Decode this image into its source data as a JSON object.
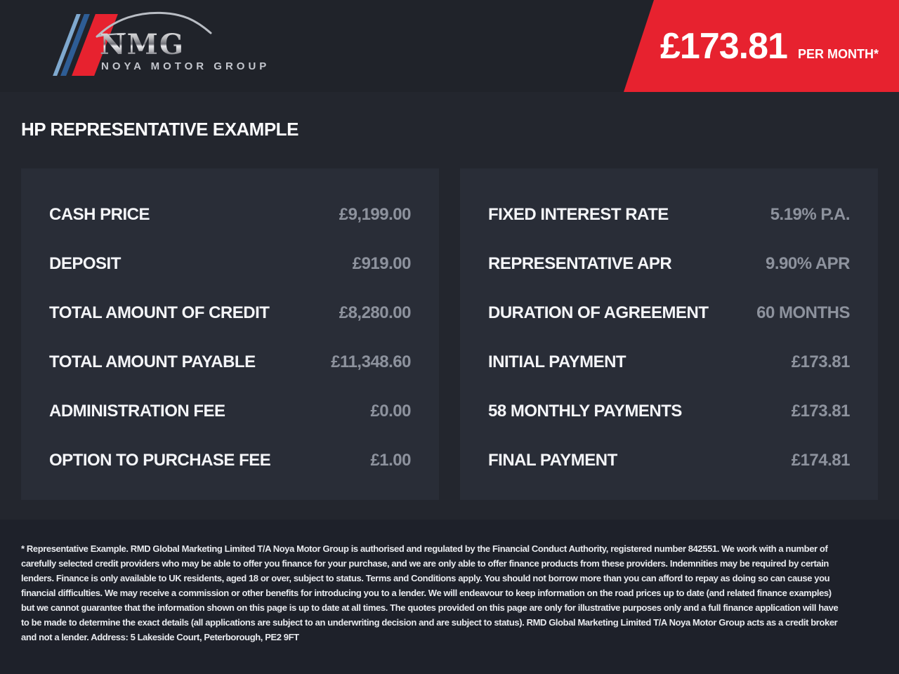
{
  "colors": {
    "accent_red": "#e7222f",
    "header_bg": "#20232a",
    "main_bg": "#23262e",
    "panel_bg": "#292d37",
    "footer_bg": "#1e212a",
    "label_text": "#f4f5f8",
    "value_text": "#8d929d",
    "logo_silver": "#c3c6cd",
    "logo_light_blue": "#7fa9cf",
    "logo_dark_blue": "#2e5d95"
  },
  "brand": {
    "initials": "NMG",
    "name": "NOYA MOTOR GROUP",
    "car_icon": "car-silhouette-icon"
  },
  "banner": {
    "price": "£173.81",
    "period": "PER MONTH*"
  },
  "page": {
    "title": "HP REPRESENTATIVE EXAMPLE"
  },
  "panels": {
    "left": {
      "rows": [
        {
          "label": "CASH PRICE",
          "value": "£9,199.00"
        },
        {
          "label": "DEPOSIT",
          "value": "£919.00"
        },
        {
          "label": "TOTAL AMOUNT OF CREDIT",
          "value": "£8,280.00"
        },
        {
          "label": "TOTAL AMOUNT PAYABLE",
          "value": "£11,348.60"
        },
        {
          "label": "ADMINISTRATION FEE",
          "value": "£0.00"
        },
        {
          "label": "OPTION TO PURCHASE FEE",
          "value": "£1.00"
        }
      ]
    },
    "right": {
      "rows": [
        {
          "label": "FIXED INTEREST RATE",
          "value": "5.19% P.A."
        },
        {
          "label": "REPRESENTATIVE APR",
          "value": "9.90% APR"
        },
        {
          "label": "DURATION OF AGREEMENT",
          "value": "60 MONTHS"
        },
        {
          "label": "INITIAL PAYMENT",
          "value": "£173.81"
        },
        {
          "label": "58 MONTHLY PAYMENTS",
          "value": "£173.81"
        },
        {
          "label": "FINAL PAYMENT",
          "value": "£174.81"
        }
      ]
    }
  },
  "footer": {
    "disclaimer": "* Representative Example. RMD Global Marketing Limited T/A Noya Motor Group is authorised and regulated by the Financial Conduct Authority, registered number 842551. We work with a number of carefully selected credit providers who may be able to offer you finance for your purchase, and we are only able to offer finance products from these providers. Indemnities may be required by certain lenders. Finance is only available to UK residents, aged 18 or over, subject to status. Terms and Conditions apply. You should not borrow more than you can afford to repay as doing so can cause you financial difficulties. We may receive a commission or other benefits for introducing you to a lender. We will endeavour to keep information on the road prices up to date (and related finance examples) but we cannot guarantee that the information shown on this page is up to date at all times. The quotes provided on this page are only for illustrative purposes only and a full finance application will have to be made to determine the exact details (all applications are subject to an underwriting decision and are subject to status). RMD Global Marketing Limited T/A Noya Motor Group acts as a credit broker and not a lender. Address: 5 Lakeside Court, Peterborough, PE2 9FT"
  }
}
